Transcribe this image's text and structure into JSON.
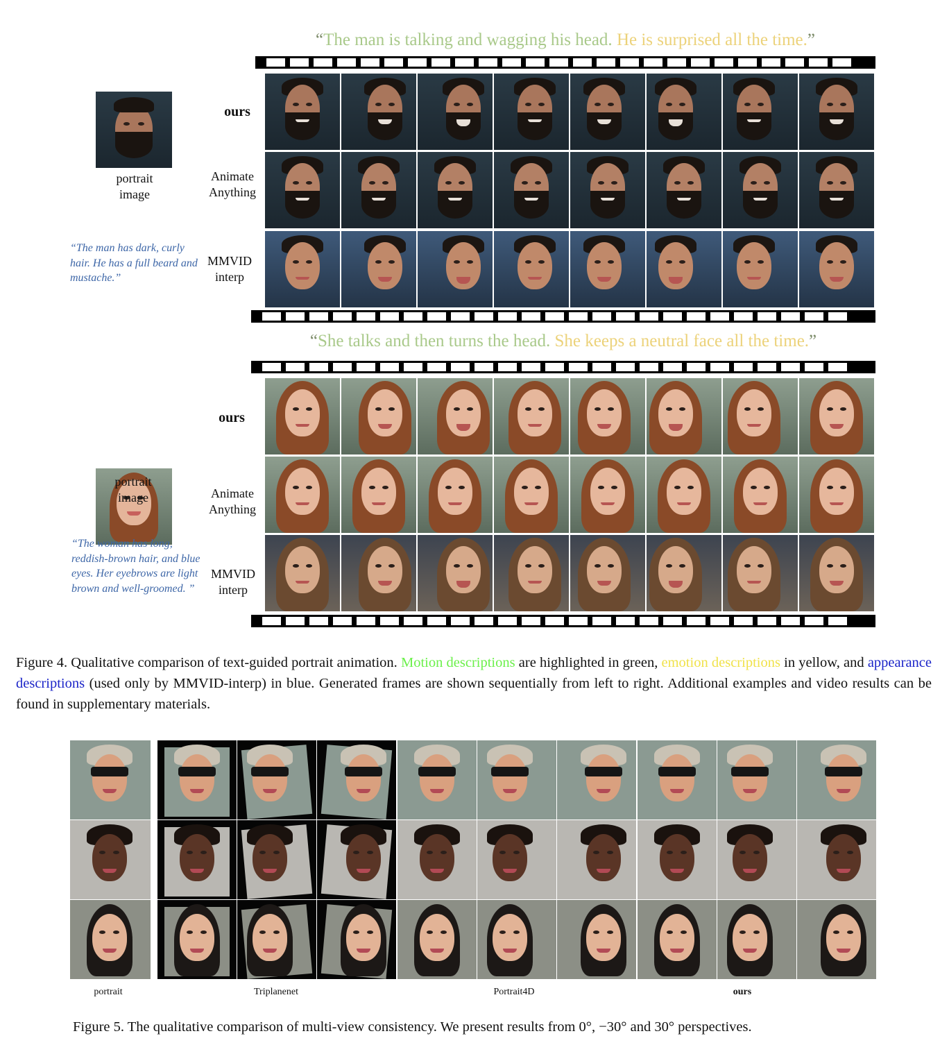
{
  "figure4": {
    "example1": {
      "quote_open": "“",
      "quote_motion": "The man is talking and wagging his head.",
      "quote_emotion": "He is surprised all the time.",
      "quote_close": "”",
      "portrait_label": "portrait\nimage",
      "appearance_text": "“The man has dark, curly hair. He has a full beard and mustache.”",
      "rows": [
        "ours",
        "Animate\nAnything",
        "MMVID\ninterp"
      ]
    },
    "example2": {
      "quote_open": "“",
      "quote_motion": "She talks and then turns the head.",
      "quote_emotion": "She keeps a neutral face all the time.",
      "quote_close": "”",
      "portrait_label": "portrait\nimage",
      "appearance_text": "“The woman has long, reddish-brown hair, and blue eyes. Her eyebrows are light brown and well-groomed. ”",
      "rows": [
        "ours",
        "Animate\nAnything",
        "MMVID\ninterp"
      ]
    },
    "caption": {
      "prefix": "Figure 4. Qualitative comparison of text-guided portrait animation.",
      "motion": "Motion descriptions",
      "mid1": "are highlighted in green,",
      "emotion": "emotion descriptions",
      "mid2": "in yellow, and",
      "appearance": "appearance descriptions",
      "suffix": "(used only by MMVID-interp) in blue. Generated frames are shown sequentially from left to right. Additional examples and video results can be found in supplementary materials."
    },
    "colors": {
      "motion": "#6bf04a",
      "emotion": "#f0e24a",
      "appearance": "#1b24c8"
    }
  },
  "figure5": {
    "column_labels": [
      "portrait",
      "Triplanenet",
      "Portrait4D",
      "ours"
    ],
    "caption": "Figure 5. The qualitative comparison of multi-view consistency. We present results from 0°, −30° and 30° perspectives."
  }
}
